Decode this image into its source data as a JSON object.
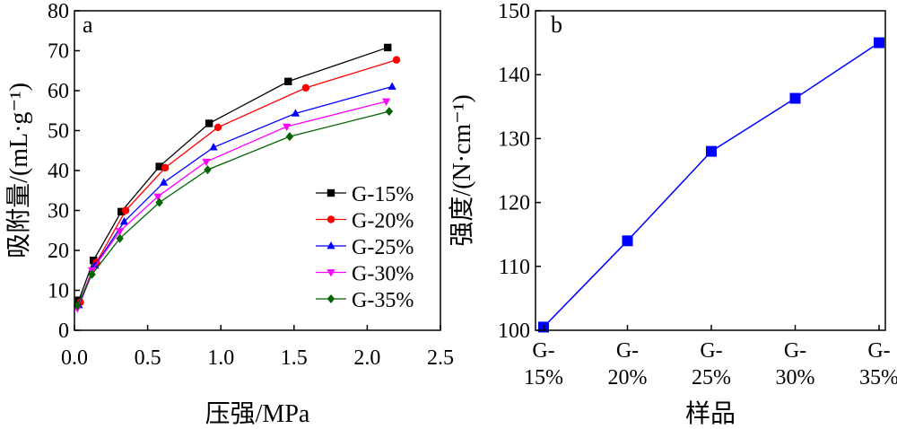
{
  "chart_data": [
    {
      "type": "line",
      "panel_label": "a",
      "xlabel": "压强/MPa",
      "ylabel": "吸附量/(mL·g⁻¹)",
      "xlim": [
        0,
        2.5
      ],
      "ylim": [
        0,
        80
      ],
      "x_ticks": [
        "0.0",
        "0.5",
        "1.0",
        "1.5",
        "2.0",
        "2.5"
      ],
      "y_ticks": [
        "0",
        "10",
        "20",
        "30",
        "40",
        "50",
        "60",
        "70",
        "80"
      ],
      "grid": false,
      "legend_position": "center-right",
      "series": [
        {
          "name": "G-15%",
          "color": "#000000",
          "marker": "square",
          "x": [
            0.03,
            0.13,
            0.32,
            0.58,
            0.92,
            1.46,
            2.14
          ],
          "y": [
            7.5,
            17.5,
            29.7,
            41.0,
            51.8,
            62.3,
            70.8
          ]
        },
        {
          "name": "G-20%",
          "color": "#ff0000",
          "marker": "circle",
          "x": [
            0.04,
            0.15,
            0.35,
            0.62,
            0.98,
            1.58,
            2.2
          ],
          "y": [
            7.0,
            17.0,
            30.0,
            40.7,
            50.8,
            60.7,
            67.7
          ]
        },
        {
          "name": "G-25%",
          "color": "#0000ff",
          "marker": "triangle-up",
          "x": [
            0.03,
            0.14,
            0.34,
            0.61,
            0.95,
            1.51,
            2.17
          ],
          "y": [
            6.3,
            16.2,
            27.2,
            37.0,
            45.8,
            54.3,
            61.0
          ]
        },
        {
          "name": "G-30%",
          "color": "#ff00ff",
          "marker": "triangle-down",
          "x": [
            0.02,
            0.12,
            0.31,
            0.57,
            0.9,
            1.45,
            2.13
          ],
          "y": [
            5.5,
            15.0,
            24.8,
            33.5,
            42.2,
            51.0,
            57.3
          ]
        },
        {
          "name": "G-35%",
          "color": "#006400",
          "marker": "diamond",
          "x": [
            0.02,
            0.12,
            0.31,
            0.58,
            0.91,
            1.47,
            2.15
          ],
          "y": [
            6.2,
            14.0,
            23.0,
            32.0,
            40.2,
            48.5,
            54.8
          ]
        }
      ]
    },
    {
      "type": "line",
      "panel_label": "b",
      "xlabel": "样品",
      "ylabel": "强度/(N·cm⁻¹)",
      "categories": [
        "G-\n15%",
        "G-\n20%",
        "G-\n25%",
        "G-\n30%",
        "G-\n35%"
      ],
      "ylim": [
        100,
        150
      ],
      "y_ticks": [
        "100",
        "110",
        "120",
        "130",
        "140",
        "150"
      ],
      "grid": false,
      "series": [
        {
          "color": "#0000ff",
          "marker": "square",
          "values": [
            100.5,
            114.0,
            128.0,
            136.3,
            145.0
          ]
        }
      ]
    }
  ]
}
